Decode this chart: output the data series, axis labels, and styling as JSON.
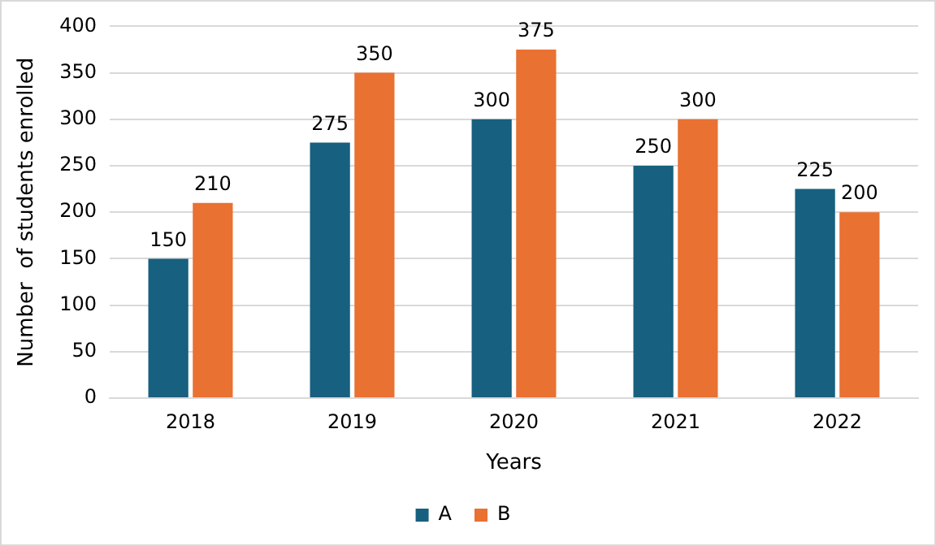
{
  "chart_data": {
    "type": "bar",
    "xlabel": "Years",
    "ylabel": "Number  of students enrolled",
    "categories": [
      "2018",
      "2019",
      "2020",
      "2021",
      "2022"
    ],
    "series": [
      {
        "name": "A",
        "color": "#17607f",
        "values": [
          150,
          275,
          300,
          250,
          225
        ]
      },
      {
        "name": "B",
        "color": "#e97132",
        "values": [
          210,
          350,
          375,
          300,
          200
        ]
      }
    ],
    "ylim": [
      0,
      400
    ],
    "yticks": [
      0,
      50,
      100,
      150,
      200,
      250,
      300,
      350,
      400
    ],
    "grid": "y",
    "legend": "bottom",
    "data_labels": true
  }
}
